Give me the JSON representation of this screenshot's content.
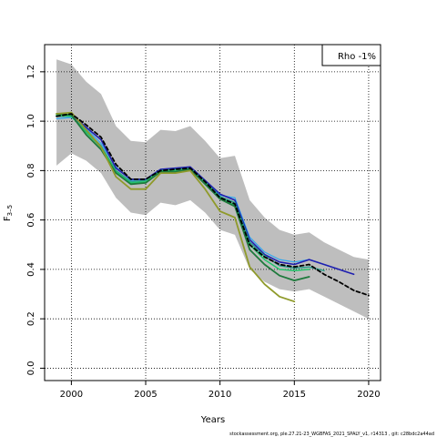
{
  "chart_data": {
    "type": "line",
    "xlabel": "Years",
    "ylabel": "F",
    "ylabel_sub": "3–5",
    "xlim": [
      1998.2,
      2020.8
    ],
    "ylim": [
      -0.05,
      1.31
    ],
    "xticks": [
      2000,
      2005,
      2010,
      2015,
      2020
    ],
    "yticks": [
      0.0,
      0.2,
      0.4,
      0.6,
      0.8,
      1.0,
      1.2
    ],
    "ytick_labels": [
      "0.0",
      "0.2",
      "0.4",
      "0.6",
      "0.8",
      "1.0",
      "1.2"
    ],
    "grid": true,
    "legend": {
      "text": "Rho -1%",
      "placement": "top-right"
    },
    "footer": "stockassessment.org, ple.27.21-23_WGBFAS_2021_SPALY_v1, r14313 , git: c28bdc2a44ad",
    "confidence_band": {
      "color": "#bebebe",
      "x": [
        1999,
        2000,
        2001,
        2002,
        2003,
        2004,
        2005,
        2006,
        2007,
        2008,
        2009,
        2010,
        2011,
        2012,
        2013,
        2014,
        2015,
        2016,
        2017,
        2018,
        2019,
        2020
      ],
      "upper": [
        1.25,
        1.23,
        1.16,
        1.11,
        0.98,
        0.92,
        0.915,
        0.965,
        0.96,
        0.98,
        0.92,
        0.85,
        0.86,
        0.68,
        0.61,
        0.56,
        0.54,
        0.55,
        0.51,
        0.48,
        0.45,
        0.44
      ],
      "lower": [
        0.82,
        0.87,
        0.84,
        0.79,
        0.69,
        0.63,
        0.62,
        0.67,
        0.66,
        0.68,
        0.63,
        0.56,
        0.54,
        0.4,
        0.35,
        0.32,
        0.31,
        0.32,
        0.29,
        0.26,
        0.23,
        0.2
      ]
    },
    "series": [
      {
        "color": "#2fa8f0",
        "width": 1.2,
        "dash": "",
        "x": [
          1999,
          2000,
          2001,
          2002,
          2003,
          2004,
          2005,
          2006,
          2007,
          2008,
          2009,
          2010,
          2011,
          2012,
          2013,
          2014,
          2015,
          2016,
          2017,
          2018
        ],
        "y": [
          1.01,
          1.015,
          0.97,
          0.91,
          0.815,
          0.76,
          0.765,
          0.805,
          0.81,
          0.815,
          0.76,
          0.7,
          0.69,
          0.53,
          0.47,
          0.44,
          0.43,
          0.44,
          0.42,
          0.4
        ]
      },
      {
        "color": "#1f1fb0",
        "width": 1.6,
        "dash": "",
        "x": [
          1999,
          2000,
          2001,
          2002,
          2003,
          2004,
          2005,
          2006,
          2007,
          2008,
          2009,
          2010,
          2011,
          2012,
          2013,
          2014,
          2015,
          2016,
          2017,
          2018,
          2019
        ],
        "y": [
          1.02,
          1.025,
          0.975,
          0.925,
          0.81,
          0.765,
          0.765,
          0.805,
          0.81,
          0.815,
          0.76,
          0.705,
          0.68,
          0.52,
          0.46,
          0.43,
          0.42,
          0.44,
          0.42,
          0.4,
          0.38
        ]
      },
      {
        "color": "#2a9e8a",
        "width": 1.5,
        "dash": "",
        "x": [
          1999,
          2000,
          2001,
          2002,
          2003,
          2004,
          2005,
          2006,
          2007,
          2008,
          2009,
          2010,
          2011,
          2012,
          2013,
          2014,
          2015,
          2016,
          2017
        ],
        "y": [
          1.02,
          1.02,
          0.96,
          0.9,
          0.8,
          0.755,
          0.76,
          0.8,
          0.805,
          0.81,
          0.755,
          0.695,
          0.67,
          0.51,
          0.455,
          0.415,
          0.405,
          0.41,
          0.395
        ]
      },
      {
        "color": "#22c46a",
        "width": 1.5,
        "dash": "",
        "x": [
          1999,
          2000,
          2001,
          2002,
          2003,
          2004,
          2005,
          2006,
          2007,
          2008,
          2009,
          2010,
          2011,
          2012,
          2013,
          2014,
          2015,
          2016
        ],
        "y": [
          1.025,
          1.02,
          0.955,
          0.895,
          0.795,
          0.75,
          0.755,
          0.8,
          0.8,
          0.805,
          0.75,
          0.69,
          0.66,
          0.5,
          0.44,
          0.4,
          0.395,
          0.4
        ]
      },
      {
        "color": "#1e7a3c",
        "width": 1.8,
        "dash": "",
        "x": [
          1999,
          2000,
          2001,
          2002,
          2003,
          2004,
          2005,
          2006,
          2007,
          2008,
          2009,
          2010,
          2011,
          2012,
          2013,
          2014,
          2015,
          2016
        ],
        "y": [
          1.03,
          1.025,
          0.945,
          0.885,
          0.79,
          0.745,
          0.75,
          0.795,
          0.795,
          0.805,
          0.745,
          0.685,
          0.655,
          0.48,
          0.42,
          0.375,
          0.355,
          0.37
        ]
      },
      {
        "color": "#8f9a2a",
        "width": 1.8,
        "dash": "",
        "x": [
          1999,
          2000,
          2001,
          2002,
          2003,
          2004,
          2005,
          2006,
          2007,
          2008,
          2009,
          2010,
          2011,
          2012,
          2013,
          2014,
          2015
        ],
        "y": [
          1.03,
          1.035,
          0.965,
          0.895,
          0.775,
          0.725,
          0.725,
          0.79,
          0.79,
          0.8,
          0.725,
          0.635,
          0.61,
          0.41,
          0.34,
          0.29,
          0.27
        ]
      },
      {
        "color": "#000000",
        "width": 1.8,
        "dash": "4,3",
        "x": [
          1999,
          2000,
          2001,
          2002,
          2003,
          2004,
          2005,
          2006,
          2007,
          2008,
          2009,
          2010,
          2011,
          2012,
          2013,
          2014,
          2015,
          2016,
          2017,
          2018,
          2019,
          2020
        ],
        "y": [
          1.02,
          1.03,
          0.985,
          0.935,
          0.825,
          0.765,
          0.765,
          0.8,
          0.805,
          0.81,
          0.755,
          0.69,
          0.665,
          0.5,
          0.45,
          0.42,
          0.41,
          0.42,
          0.38,
          0.35,
          0.315,
          0.295
        ]
      }
    ]
  }
}
